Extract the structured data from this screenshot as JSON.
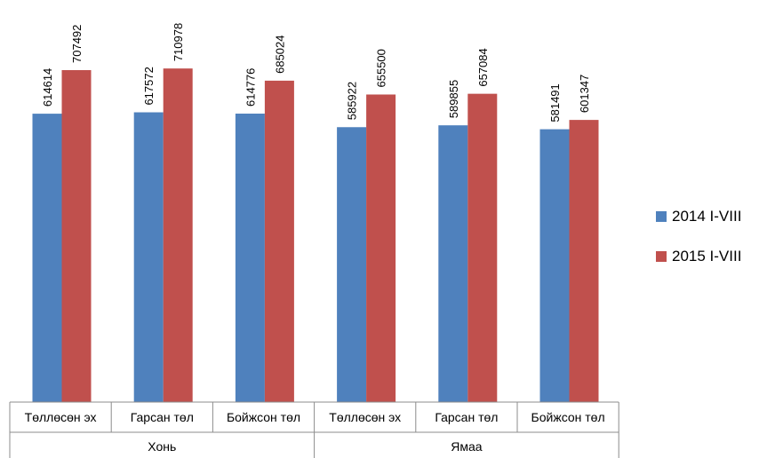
{
  "chart_data": {
    "type": "bar",
    "title": "",
    "xlabel": "",
    "ylabel": "",
    "ylim": [
      0,
      800000
    ],
    "grid": false,
    "legend_position": "right",
    "groups": [
      {
        "label": "Хонь",
        "categories": [
          "Төллөсөн эх",
          "Гарсан төл",
          "Бойжсон төл"
        ]
      },
      {
        "label": "Ямаа",
        "categories": [
          "Төллөсөн эх",
          "Гарсан төл",
          "Бойжсон төл"
        ]
      }
    ],
    "categories": [
      "Төллөсөн эх",
      "Гарсан төл",
      "Бойжсон төл",
      "Төллөсөн эх",
      "Гарсан төл",
      "Бойжсон төл"
    ],
    "series": [
      {
        "name": "2014 I-VIII",
        "color": "#4F81BD",
        "values": [
          614614,
          617572,
          614776,
          585922,
          589855,
          581491
        ]
      },
      {
        "name": "2015 I-VIII",
        "color": "#C0504D",
        "values": [
          707492,
          710978,
          685024,
          655500,
          657084,
          601347
        ]
      }
    ]
  }
}
